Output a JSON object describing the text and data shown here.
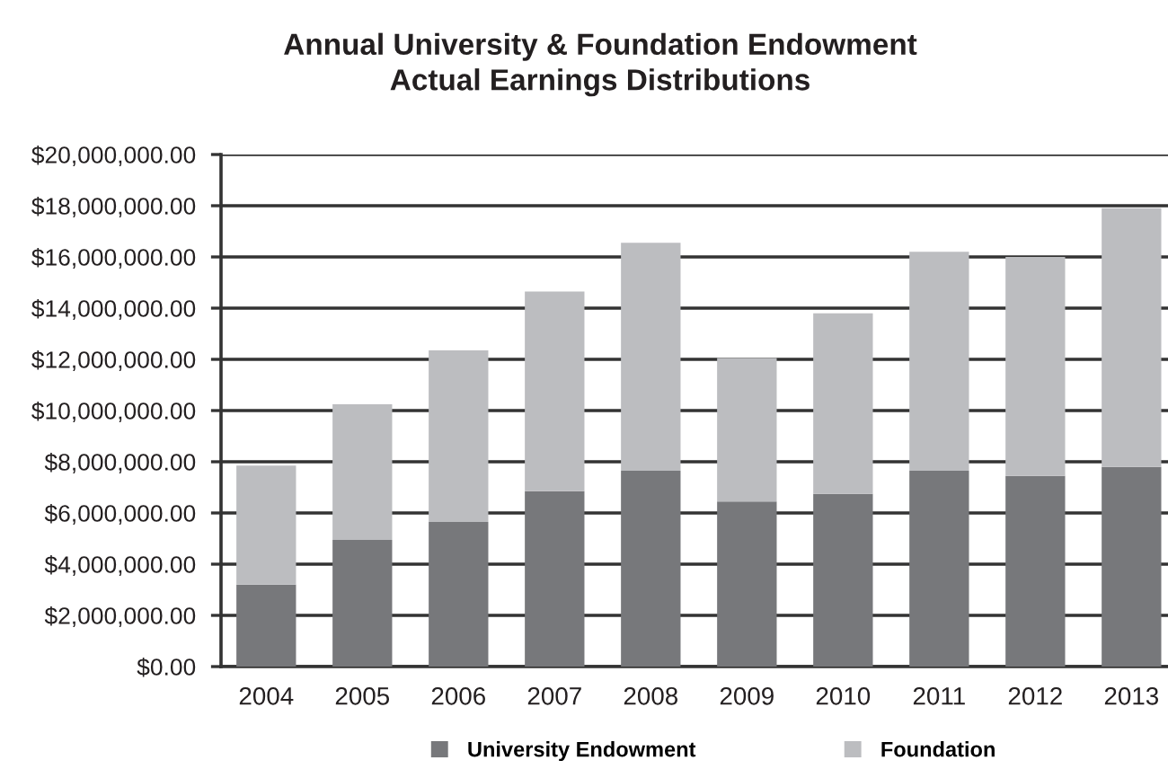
{
  "chart_data": {
    "type": "bar",
    "title": "Annual University & Foundation Endowment\nActual Earnings Distributions",
    "categories": [
      "2004",
      "2005",
      "2006",
      "2007",
      "2008",
      "2009",
      "2010",
      "2011",
      "2012",
      "2013"
    ],
    "series": [
      {
        "name": "University Endowment",
        "color": "#77787b",
        "values": [
          3200000,
          4950000,
          5650000,
          6850000,
          7650000,
          6450000,
          6750000,
          7650000,
          7450000,
          7800000
        ]
      },
      {
        "name": "Foundation",
        "color": "#bcbdc0",
        "values": [
          4650000,
          5300000,
          6700000,
          7800000,
          8900000,
          5600000,
          7050000,
          8550000,
          8550000,
          10100000
        ]
      }
    ],
    "stacked": true,
    "ylim": [
      0,
      20000000
    ],
    "yticks": [
      {
        "value": 0,
        "label": "$0.00"
      },
      {
        "value": 2000000,
        "label": "$2,000,000.00"
      },
      {
        "value": 4000000,
        "label": "$4,000,000.00"
      },
      {
        "value": 6000000,
        "label": "$6,000,000.00"
      },
      {
        "value": 8000000,
        "label": "$8,000,000.00"
      },
      {
        "value": 10000000,
        "label": "$10,000,000.00"
      },
      {
        "value": 12000000,
        "label": "$12,000,000.00"
      },
      {
        "value": 14000000,
        "label": "$14,000,000.00"
      },
      {
        "value": 16000000,
        "label": "$16,000,000.00"
      },
      {
        "value": 18000000,
        "label": "$18,000,000.00"
      },
      {
        "value": 20000000,
        "label": "$20,000,000.00"
      }
    ],
    "grid": "y",
    "legend": "bottom"
  }
}
